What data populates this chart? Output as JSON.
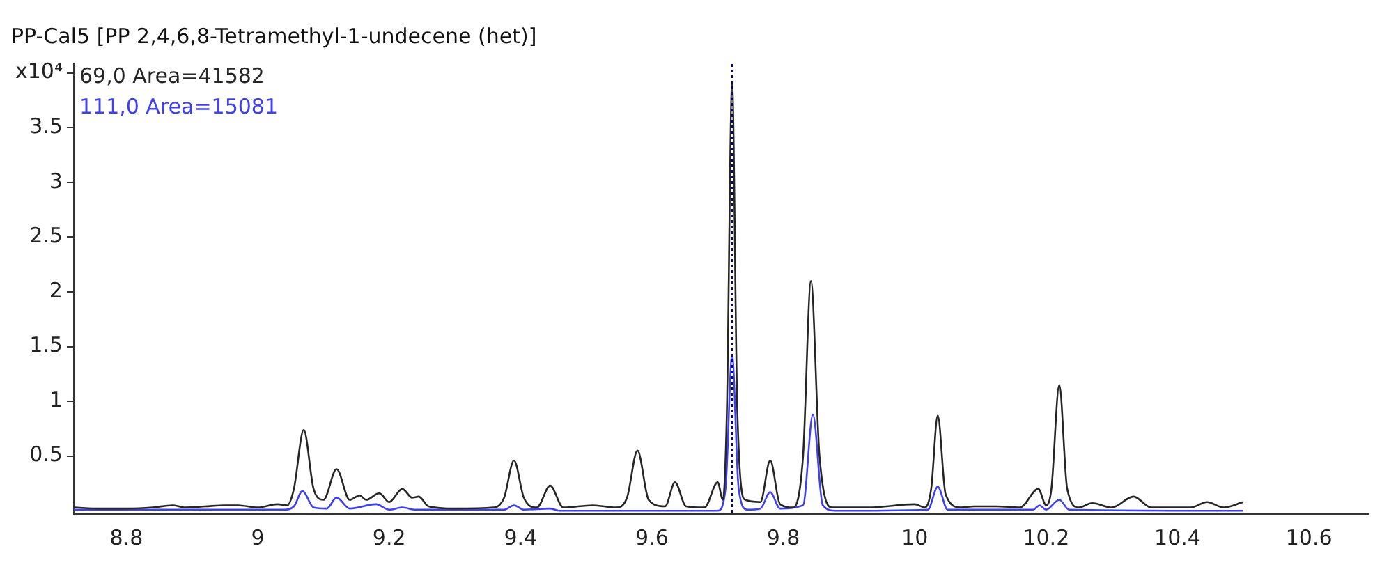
{
  "chart_data": {
    "type": "line",
    "title": "PP-Cal5 [PP 2,4,6,8-Tetramethyl-1-undecene (het)]",
    "series": [
      {
        "name": "69,0 Area=41582",
        "color": "#262626",
        "x": [
          8.72,
          8.76,
          8.8,
          8.84,
          8.87,
          8.89,
          8.92,
          8.95,
          8.97,
          9.0,
          9.03,
          9.045,
          9.055,
          9.07,
          9.085,
          9.1,
          9.12,
          9.14,
          9.155,
          9.165,
          9.185,
          9.2,
          9.22,
          9.235,
          9.245,
          9.26,
          9.3,
          9.36,
          9.375,
          9.39,
          9.405,
          9.425,
          9.445,
          9.465,
          9.51,
          9.545,
          9.562,
          9.578,
          9.595,
          9.62,
          9.635,
          9.652,
          9.68,
          9.7,
          9.708,
          9.714,
          9.722,
          9.73,
          9.742,
          9.765,
          9.78,
          9.795,
          9.815,
          9.83,
          9.842,
          9.855,
          9.875,
          9.93,
          10.0,
          10.015,
          10.025,
          10.035,
          10.047,
          10.07,
          10.09,
          10.125,
          10.16,
          10.188,
          10.2,
          10.208,
          10.22,
          10.232,
          10.25,
          10.27,
          10.3,
          10.333,
          10.36,
          10.42,
          10.445,
          10.47,
          10.5
        ],
        "values": [
          0.03,
          0.02,
          0.02,
          0.03,
          0.05,
          0.03,
          0.04,
          0.05,
          0.05,
          0.03,
          0.06,
          0.05,
          0.2,
          0.74,
          0.2,
          0.1,
          0.38,
          0.1,
          0.14,
          0.1,
          0.16,
          0.08,
          0.2,
          0.12,
          0.13,
          0.04,
          0.02,
          0.03,
          0.12,
          0.46,
          0.12,
          0.03,
          0.23,
          0.03,
          0.05,
          0.03,
          0.12,
          0.55,
          0.1,
          0.04,
          0.26,
          0.04,
          0.03,
          0.26,
          0.1,
          0.9,
          3.9,
          0.9,
          0.1,
          0.08,
          0.46,
          0.06,
          0.03,
          0.5,
          2.1,
          0.5,
          0.03,
          0.03,
          0.06,
          0.03,
          0.2,
          0.87,
          0.15,
          0.03,
          0.04,
          0.04,
          0.03,
          0.2,
          0.05,
          0.2,
          1.15,
          0.2,
          0.03,
          0.07,
          0.03,
          0.13,
          0.03,
          0.03,
          0.08,
          0.03,
          0.08
        ]
      },
      {
        "name": "111,0 Area=15081",
        "color": "#3f3ff5",
        "x": [
          8.72,
          9.04,
          9.055,
          9.068,
          9.085,
          9.105,
          9.12,
          9.14,
          9.18,
          9.2,
          9.22,
          9.24,
          9.375,
          9.39,
          9.405,
          9.445,
          9.46,
          9.7,
          9.712,
          9.722,
          9.732,
          9.745,
          9.765,
          9.78,
          9.795,
          9.83,
          9.845,
          9.86,
          9.88,
          10.02,
          10.035,
          10.05,
          10.18,
          10.19,
          10.2,
          10.22,
          10.235,
          10.5
        ],
        "values": [
          0.01,
          0.01,
          0.04,
          0.18,
          0.03,
          0.02,
          0.12,
          0.02,
          0.06,
          0.01,
          0.03,
          0.01,
          0.01,
          0.05,
          0.01,
          0.02,
          0.0,
          0.0,
          0.2,
          1.42,
          0.2,
          0.01,
          0.02,
          0.17,
          0.02,
          0.05,
          0.88,
          0.05,
          0.0,
          0.01,
          0.22,
          0.01,
          0.01,
          0.05,
          0.01,
          0.1,
          0.01,
          0.0
        ]
      }
    ],
    "xlim": [
      8.72,
      10.69
    ],
    "xticks": [
      8.8,
      9,
      9.2,
      9.4,
      9.6,
      9.8,
      10,
      10.2,
      10.4,
      10.6
    ],
    "ylim": [
      -0.03,
      4.08
    ],
    "yticks": [
      0.5,
      1,
      1.5,
      2,
      2.5,
      3,
      3.5,
      {
        "value": 4,
        "label": "x10⁴"
      }
    ],
    "ref_lines": [
      {
        "axis": "x",
        "value": 9.722,
        "color": "#00007f",
        "line_style": "dotted"
      }
    ],
    "legend": "top left",
    "marker": "none",
    "line_style": "solid"
  }
}
